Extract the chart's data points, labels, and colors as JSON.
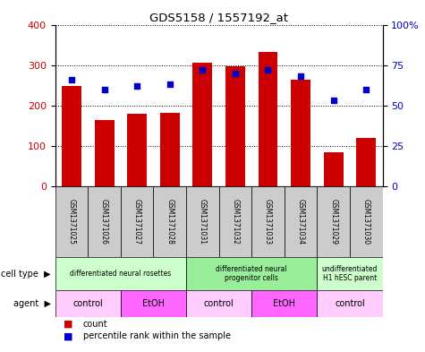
{
  "title": "GDS5158 / 1557192_at",
  "samples": [
    "GSM1371025",
    "GSM1371026",
    "GSM1371027",
    "GSM1371028",
    "GSM1371031",
    "GSM1371032",
    "GSM1371033",
    "GSM1371034",
    "GSM1371029",
    "GSM1371030"
  ],
  "counts": [
    248,
    165,
    180,
    183,
    307,
    298,
    333,
    265,
    85,
    120
  ],
  "percentiles": [
    66,
    60,
    62,
    63,
    72,
    70,
    72,
    68,
    53,
    60
  ],
  "ylim_left": [
    0,
    400
  ],
  "ylim_right": [
    0,
    100
  ],
  "yticks_left": [
    0,
    100,
    200,
    300,
    400
  ],
  "yticks_right": [
    0,
    25,
    50,
    75,
    100
  ],
  "yticklabels_right": [
    "0",
    "25",
    "50",
    "75",
    "100%"
  ],
  "bar_color": "#cc0000",
  "dot_color": "#0000cc",
  "cell_type_groups": [
    {
      "label": "differentiated neural rosettes",
      "start": 0,
      "end": 4,
      "color": "#ccffcc"
    },
    {
      "label": "differentiated neural\nprogenitor cells",
      "start": 4,
      "end": 8,
      "color": "#99ee99"
    },
    {
      "label": "undifferentiated\nH1 hESC parent",
      "start": 8,
      "end": 10,
      "color": "#ccffcc"
    }
  ],
  "agent_groups": [
    {
      "label": "control",
      "start": 0,
      "end": 2,
      "color": "#ffccff"
    },
    {
      "label": "EtOH",
      "start": 2,
      "end": 4,
      "color": "#ff66ff"
    },
    {
      "label": "control",
      "start": 4,
      "end": 6,
      "color": "#ffccff"
    },
    {
      "label": "EtOH",
      "start": 6,
      "end": 8,
      "color": "#ff66ff"
    },
    {
      "label": "control",
      "start": 8,
      "end": 10,
      "color": "#ffccff"
    }
  ],
  "sample_bg_color": "#cccccc",
  "legend_count_color": "#cc0000",
  "legend_pct_color": "#0000cc"
}
